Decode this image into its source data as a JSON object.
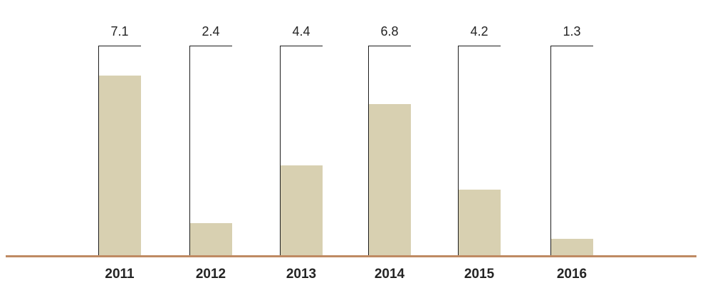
{
  "chart_data": {
    "type": "bar",
    "categories": [
      "2011",
      "2012",
      "2013",
      "2014",
      "2015",
      "2016"
    ],
    "values": [
      7.1,
      2.4,
      4.4,
      6.8,
      4.2,
      1.3
    ],
    "data_labels": [
      "7.1",
      "2.4",
      "4.4",
      "6.8",
      "4.2",
      "1.3"
    ],
    "rendered_bar_fractions": [
      0.857,
      0.153,
      0.428,
      0.722,
      0.312,
      0.077
    ],
    "title": "",
    "xlabel": "",
    "ylabel": "",
    "legend": "none",
    "grid": false,
    "axis_tick_labels_visible": false,
    "frame_note": "each column has an equal-height open frame (left + top thin black rule) with the value label above it; filled bars sit on a brown baseline",
    "colors": {
      "bar_fill": "#d8d0b1",
      "frame_line": "#1c1c1c",
      "baseline": "#bf8a63",
      "text": "#242424",
      "background": "#ffffff"
    }
  }
}
